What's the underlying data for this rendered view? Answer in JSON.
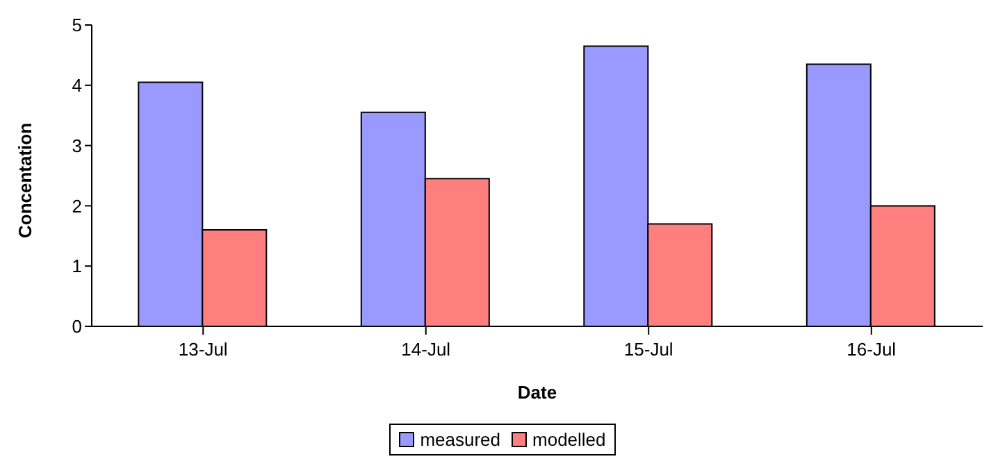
{
  "chart_data": {
    "type": "bar",
    "xlabel": "Date",
    "ylabel": "Concentation",
    "categories": [
      "13-Jul",
      "14-Jul",
      "15-Jul",
      "16-Jul"
    ],
    "series": [
      {
        "name": "measured",
        "color": "#9999ff",
        "values": [
          4.05,
          3.55,
          4.65,
          4.35
        ]
      },
      {
        "name": "modelled",
        "color": "#ff7f7f",
        "values": [
          1.6,
          2.45,
          1.7,
          2.0
        ]
      }
    ],
    "ylim": [
      0,
      5
    ],
    "yticks": [
      0,
      1,
      2,
      3,
      4,
      5
    ],
    "grid": false,
    "legend": "bottom"
  }
}
